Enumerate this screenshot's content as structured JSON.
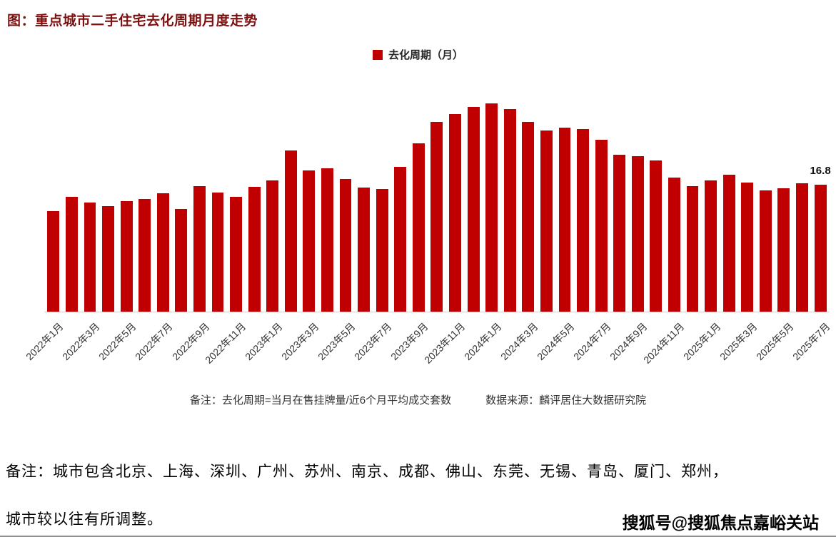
{
  "page": {
    "title": "图：重点城市二手住宅去化周期月度走势",
    "note_definition": "备注：去化周期=当月在售挂牌量/近6个月平均成交套数",
    "note_source": "数据来源：麟评居住大数据研究院",
    "footnote_line1": "备注：城市包含北京、上海、深圳、广州、苏州、南京、成都、佛山、东莞、无锡、青岛、厦门、郑州，",
    "footnote_line2": "城市较以往有所调整。",
    "watermark": "搜狐号@搜狐焦点嘉峪关站"
  },
  "colors": {
    "bar": "#C00000",
    "title": "#7f1010"
  },
  "chart_data": {
    "type": "bar",
    "title": "重点城市二手住宅去化周期月度走势",
    "legend_label": "去化周期（月）",
    "legend_position": "top-center",
    "bar_color": "#C00000",
    "grid": false,
    "ylabel": "去化周期（月）",
    "xlabel": "",
    "ylim": [
      0,
      30
    ],
    "categories": [
      "2022年1月",
      "2022年2月",
      "2022年3月",
      "2022年4月",
      "2022年5月",
      "2022年6月",
      "2022年7月",
      "2022年8月",
      "2022年9月",
      "2022年10月",
      "2022年11月",
      "2022年12月",
      "2023年1月",
      "2023年2月",
      "2023年3月",
      "2023年4月",
      "2023年5月",
      "2023年6月",
      "2023年7月",
      "2023年8月",
      "2023年9月",
      "2023年10月",
      "2023年11月",
      "2023年12月",
      "2024年1月",
      "2024年2月",
      "2024年3月",
      "2024年4月",
      "2024年5月",
      "2024年6月",
      "2024年7月",
      "2024年8月",
      "2024年9月",
      "2024年10月",
      "2024年11月",
      "2024年12月",
      "2025年1月",
      "2025年2月",
      "2025年3月",
      "2025年4月",
      "2025年5月",
      "2025年6月",
      "2025年7月"
    ],
    "values": [
      13.3,
      15.2,
      14.5,
      14.0,
      14.7,
      15.0,
      15.7,
      13.6,
      16.7,
      15.8,
      15.2,
      16.6,
      17.4,
      21.4,
      18.7,
      19.0,
      17.6,
      16.5,
      16.3,
      19.2,
      22.3,
      25.2,
      26.2,
      27.2,
      27.6,
      26.9,
      25.2,
      24.0,
      24.4,
      24.2,
      22.8,
      20.8,
      20.6,
      20.1,
      17.8,
      16.7,
      17.4,
      18.2,
      17.1,
      16.1,
      16.4,
      17.0,
      16.8
    ],
    "x_tick_labels": [
      "2022年1月",
      "2022年3月",
      "2022年5月",
      "2022年7月",
      "2022年9月",
      "2022年11月",
      "2023年1月",
      "2023年3月",
      "2023年5月",
      "2023年7月",
      "2023年9月",
      "2023年11月",
      "2024年1月",
      "2024年3月",
      "2024年5月",
      "2024年7月",
      "2024年9月",
      "2024年11月",
      "2025年1月",
      "2025年3月",
      "2025年5月",
      "2025年7月"
    ],
    "x_tick_step": 2,
    "last_value_label": "16.8"
  }
}
